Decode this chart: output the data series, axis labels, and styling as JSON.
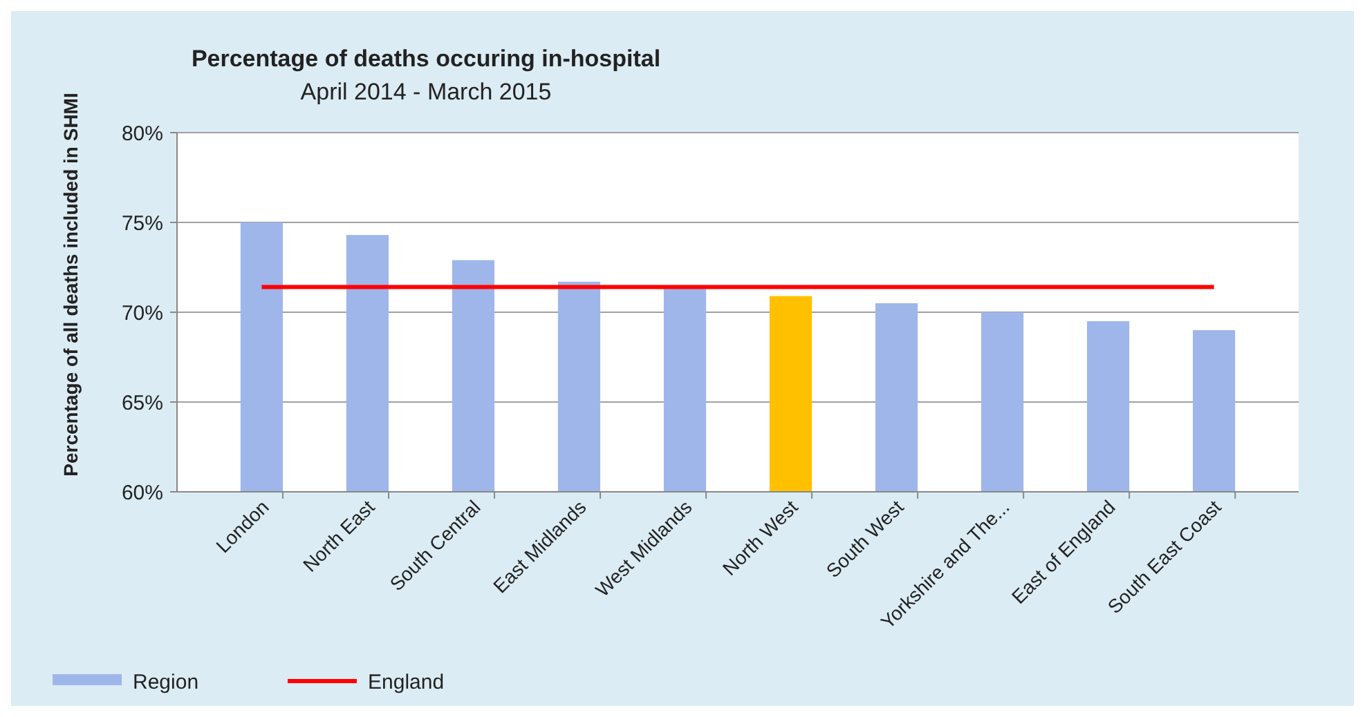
{
  "chart_data": {
    "type": "bar",
    "title": "Percentage of deaths occuring in-hospital",
    "subtitle": "April 2014 - March 2015",
    "ylabel": "Percentage of all deaths included in SHMI",
    "categories": [
      "London",
      "North East",
      "South Central",
      "East Midlands",
      "West Midlands",
      "North West",
      "South West",
      "Yorkshire and The...",
      "East of England",
      "South East Coast"
    ],
    "series": [
      {
        "name": "Region",
        "color": "#9fb6ea",
        "colors": [
          "#9fb6ea",
          "#9fb6ea",
          "#9fb6ea",
          "#9fb6ea",
          "#9fb6ea",
          "#ffc000",
          "#9fb6ea",
          "#9fb6ea",
          "#9fb6ea",
          "#9fb6ea"
        ],
        "values": [
          75.0,
          74.3,
          72.9,
          71.7,
          71.3,
          70.9,
          70.5,
          70.0,
          69.5,
          69.0
        ]
      },
      {
        "name": "England",
        "type": "line",
        "color": "#ff0000",
        "values": [
          71.4,
          71.4,
          71.4,
          71.4,
          71.4,
          71.4,
          71.4,
          71.4,
          71.4,
          71.4
        ]
      }
    ],
    "ylim": [
      60,
      80
    ],
    "yticks": [
      {
        "value": 60,
        "label": "60%"
      },
      {
        "value": 65,
        "label": "65%"
      },
      {
        "value": 70,
        "label": "70%"
      },
      {
        "value": 75,
        "label": "75%"
      },
      {
        "value": 80,
        "label": "80%"
      }
    ],
    "grid": "y",
    "legend": "bottom"
  }
}
